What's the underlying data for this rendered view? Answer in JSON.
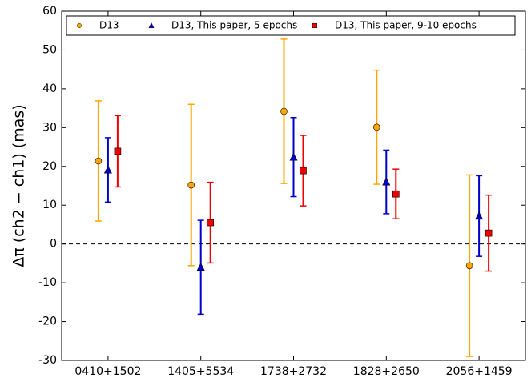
{
  "chart_data": {
    "type": "errorbar",
    "y_label": "Δπ (ch2 − ch1) (mas)",
    "categories": [
      "0410+1502",
      "1405+5534",
      "1738+2732",
      "1828+2650",
      "2056+1459"
    ],
    "ylim": [
      -30,
      60
    ],
    "yticks": [
      -30,
      -20,
      -10,
      0,
      10,
      20,
      30,
      40,
      50,
      60
    ],
    "hline": 0,
    "legend": "top",
    "series": [
      {
        "name": "D13",
        "color": "#ffa500",
        "marker": "circle",
        "values": [
          21.4,
          15.2,
          34.2,
          30.1,
          -5.6
        ],
        "errors": [
          15.5,
          20.8,
          18.6,
          14.7,
          23.4
        ]
      },
      {
        "name": "D13, This paper, 5 epochs",
        "color": "#0000cc",
        "marker": "triangle",
        "values": [
          19.1,
          -6.0,
          22.4,
          16.0,
          7.2
        ],
        "errors": [
          8.3,
          12.1,
          10.2,
          8.2,
          10.4
        ]
      },
      {
        "name": "D13, This paper, 9-10 epochs",
        "color": "#ee0000",
        "marker": "square",
        "values": [
          23.9,
          5.5,
          18.9,
          12.9,
          2.8
        ],
        "errors": [
          9.2,
          10.4,
          9.1,
          6.4,
          9.8
        ]
      }
    ]
  }
}
